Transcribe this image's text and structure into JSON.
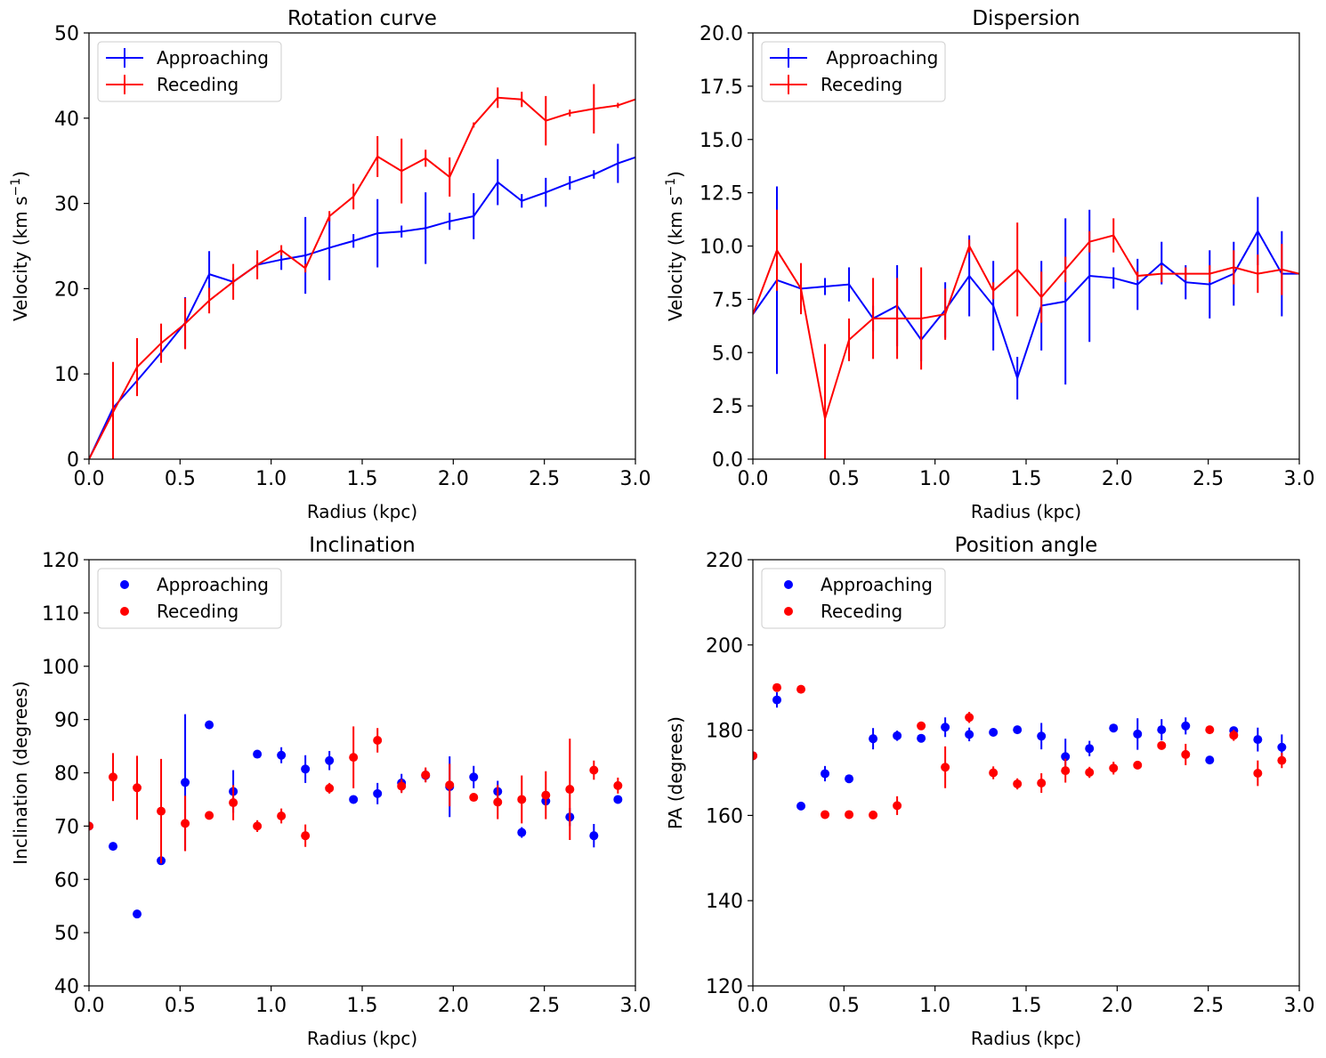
{
  "chart_data": [
    {
      "type": "line",
      "title": "Rotation curve",
      "xlabel": "Radius (kpc)",
      "ylabel_main": "Velocity (km s",
      "ylabel_sup": "−1",
      "ylabel_tail": ")",
      "xlim": [
        0,
        3.0
      ],
      "ylim": [
        0,
        50
      ],
      "xticks": [
        "0.0",
        "0.5",
        "1.0",
        "1.5",
        "2.0",
        "2.5",
        "3.0"
      ],
      "yticks": [
        "0",
        "10",
        "20",
        "30",
        "40",
        "50"
      ],
      "legend_position": "top-left",
      "x": [
        0.0,
        0.132,
        0.264,
        0.396,
        0.528,
        0.66,
        0.792,
        0.924,
        1.056,
        1.188,
        1.32,
        1.452,
        1.584,
        1.716,
        1.848,
        1.98,
        2.112,
        2.244,
        2.376,
        2.508,
        2.64,
        2.772,
        2.904,
        3.0
      ],
      "series": [
        {
          "name": "Approaching",
          "color": "#0000ff",
          "y": [
            0.0,
            6.0,
            9.2,
            12.5,
            16.0,
            21.7,
            20.8,
            22.8,
            23.4,
            23.9,
            24.8,
            25.6,
            26.5,
            26.7,
            27.1,
            27.9,
            28.5,
            32.5,
            30.3,
            31.3,
            32.4,
            33.4,
            34.7,
            35.4
          ],
          "yerr": [
            0.0,
            0.8,
            0.5,
            0.6,
            3.0,
            2.7,
            0.5,
            0.4,
            1.2,
            4.5,
            3.8,
            0.8,
            4.0,
            0.7,
            4.2,
            1.0,
            2.7,
            2.7,
            0.8,
            1.7,
            0.8,
            0.5,
            2.3,
            0.0
          ]
        },
        {
          "name": "Receding",
          "color": "#ff0000",
          "y": [
            0.0,
            5.5,
            10.8,
            13.6,
            15.9,
            18.6,
            20.8,
            22.8,
            24.5,
            22.4,
            28.5,
            30.8,
            35.5,
            33.8,
            35.3,
            33.1,
            39.2,
            42.4,
            42.2,
            39.7,
            40.6,
            41.1,
            41.5,
            42.2
          ],
          "yerr": [
            0.0,
            5.9,
            3.4,
            2.3,
            3.0,
            1.5,
            2.1,
            1.7,
            0.6,
            0.5,
            0.6,
            1.5,
            2.4,
            3.8,
            1.0,
            2.3,
            0.3,
            1.2,
            0.9,
            2.9,
            0.4,
            2.9,
            0.3,
            0.0
          ]
        }
      ]
    },
    {
      "type": "line",
      "title": "Dispersion",
      "xlabel": "Radius (kpc)",
      "ylabel_main": "Velocity (km s",
      "ylabel_sup": "−1",
      "ylabel_tail": ")",
      "xlim": [
        0,
        3.0
      ],
      "ylim": [
        0,
        20
      ],
      "xticks": [
        "0.0",
        "0.5",
        "1.0",
        "1.5",
        "2.0",
        "2.5",
        "3.0"
      ],
      "yticks": [
        "0.0",
        "2.5",
        "5.0",
        "7.5",
        "10.0",
        "12.5",
        "15.0",
        "17.5",
        "20.0"
      ],
      "legend_position": "top-left",
      "x": [
        0.0,
        0.132,
        0.264,
        0.396,
        0.528,
        0.66,
        0.792,
        0.924,
        1.056,
        1.188,
        1.32,
        1.452,
        1.584,
        1.716,
        1.848,
        1.98,
        2.112,
        2.244,
        2.376,
        2.508,
        2.64,
        2.772,
        2.904,
        3.0
      ],
      "series": [
        {
          "name": " Approaching",
          "color": "#0000ff",
          "y": [
            6.8,
            8.4,
            8.0,
            8.1,
            8.2,
            6.6,
            7.2,
            5.6,
            7.0,
            8.6,
            7.2,
            3.8,
            7.2,
            7.4,
            8.6,
            8.5,
            8.2,
            9.2,
            8.3,
            8.2,
            8.7,
            10.7,
            8.7,
            8.7
          ],
          "yerr": [
            0.0,
            4.4,
            0.4,
            0.4,
            0.8,
            0.6,
            1.9,
            1.0,
            1.3,
            1.9,
            2.1,
            1.0,
            2.1,
            3.9,
            3.1,
            0.5,
            1.2,
            1.0,
            0.8,
            1.6,
            1.5,
            1.6,
            2.0,
            0.0
          ]
        },
        {
          "name": "Receding",
          "color": "#ff0000",
          "y": [
            6.8,
            9.8,
            8.0,
            1.9,
            5.6,
            6.6,
            6.6,
            6.6,
            6.8,
            10.0,
            7.9,
            8.9,
            7.6,
            8.9,
            10.2,
            10.5,
            8.6,
            8.7,
            8.7,
            8.7,
            9.0,
            8.7,
            8.9,
            8.7
          ],
          "yerr": [
            0.0,
            1.9,
            1.2,
            3.5,
            1.0,
            1.9,
            1.9,
            2.4,
            1.2,
            0.3,
            0.4,
            2.2,
            1.2,
            0.6,
            0.5,
            0.8,
            0.2,
            0.4,
            0.3,
            0.4,
            0.8,
            0.9,
            1.2,
            0.0
          ]
        }
      ]
    },
    {
      "type": "scatter",
      "title": "Inclination",
      "xlabel": "Radius (kpc)",
      "ylabel_main": "Inclination (degrees)",
      "ylabel_sup": "",
      "ylabel_tail": "",
      "xlim": [
        0,
        3.0
      ],
      "ylim": [
        40,
        120
      ],
      "xticks": [
        "0.0",
        "0.5",
        "1.0",
        "1.5",
        "2.0",
        "2.5",
        "3.0"
      ],
      "yticks": [
        "40",
        "50",
        "60",
        "70",
        "80",
        "90",
        "100",
        "110",
        "120"
      ],
      "legend_position": "top-left",
      "x": [
        0.0,
        0.132,
        0.264,
        0.396,
        0.528,
        0.66,
        0.792,
        0.924,
        1.056,
        1.188,
        1.32,
        1.452,
        1.584,
        1.716,
        1.848,
        1.98,
        2.112,
        2.244,
        2.376,
        2.508,
        2.64,
        2.772,
        2.904
      ],
      "series": [
        {
          "name": "Approaching",
          "color": "#0000ff",
          "y": [
            70.0,
            66.2,
            53.5,
            63.5,
            78.2,
            89.0,
            76.5,
            83.5,
            83.3,
            80.7,
            82.3,
            75.0,
            76.1,
            78.1,
            79.5,
            77.4,
            79.2,
            76.5,
            68.8,
            74.7,
            71.7,
            68.2,
            75.0
          ],
          "yerr": [
            0.0,
            0.0,
            0.0,
            0.0,
            12.8,
            0.8,
            4.0,
            0.5,
            1.5,
            2.6,
            1.8,
            0.0,
            2.0,
            1.7,
            1.2,
            5.7,
            2.1,
            2.0,
            1.0,
            0.7,
            1.7,
            2.2,
            0.0
          ]
        },
        {
          "name": "Receding",
          "color": "#ff0000",
          "y": [
            70.0,
            79.2,
            77.2,
            72.8,
            70.5,
            72.0,
            74.4,
            70.0,
            71.9,
            68.2,
            77.1,
            82.9,
            86.1,
            77.5,
            79.6,
            77.7,
            75.4,
            74.5,
            75.0,
            75.8,
            76.9,
            80.5,
            77.6
          ],
          "yerr": [
            0.0,
            4.5,
            6.0,
            9.8,
            5.2,
            0.0,
            3.3,
            1.1,
            1.4,
            2.1,
            1.0,
            5.8,
            2.3,
            1.3,
            1.4,
            4.0,
            0.4,
            3.2,
            4.5,
            4.5,
            9.5,
            1.8,
            1.5
          ]
        }
      ]
    },
    {
      "type": "scatter",
      "title": "Position angle",
      "xlabel": "Radius (kpc)",
      "ylabel_main": "PA (degrees)",
      "ylabel_sup": "",
      "ylabel_tail": "",
      "xlim": [
        0,
        3.0
      ],
      "ylim": [
        120,
        220
      ],
      "xticks": [
        "0.0",
        "0.5",
        "1.0",
        "1.5",
        "2.0",
        "2.5",
        "3.0"
      ],
      "yticks": [
        "120",
        "140",
        "160",
        "180",
        "200",
        "220"
      ],
      "legend_position": "top-left",
      "x": [
        0.0,
        0.132,
        0.264,
        0.396,
        0.528,
        0.66,
        0.792,
        0.924,
        1.056,
        1.188,
        1.32,
        1.452,
        1.584,
        1.716,
        1.848,
        1.98,
        2.112,
        2.244,
        2.376,
        2.508,
        2.64,
        2.772,
        2.904
      ],
      "series": [
        {
          "name": "Approaching",
          "color": "#0000ff",
          "y": [
            174.0,
            187.1,
            162.2,
            169.8,
            168.6,
            178.0,
            178.7,
            178.1,
            180.7,
            179.0,
            179.5,
            180.1,
            178.6,
            173.8,
            175.7,
            180.5,
            179.1,
            180.1,
            181.0,
            173.0,
            179.9,
            177.8,
            176.0
          ],
          "yerr": [
            0.0,
            1.8,
            0.0,
            1.8,
            0.0,
            2.5,
            1.2,
            0.0,
            2.3,
            1.6,
            0.0,
            0.0,
            3.1,
            4.2,
            1.8,
            0.8,
            3.7,
            2.5,
            2.0,
            0.0,
            0.0,
            2.8,
            3.0
          ]
        },
        {
          "name": "Receding",
          "color": "#ff0000",
          "y": [
            174.0,
            190.0,
            189.6,
            160.2,
            160.2,
            160.1,
            162.3,
            181.0,
            171.3,
            183.0,
            170.0,
            167.4,
            167.6,
            170.5,
            170.1,
            171.1,
            171.8,
            176.4,
            174.3,
            180.1,
            178.8,
            169.9,
            172.9
          ],
          "yerr": [
            0.0,
            0.0,
            0.0,
            0.0,
            0.0,
            0.0,
            2.2,
            0.0,
            4.9,
            1.3,
            1.5,
            1.3,
            2.3,
            2.8,
            1.3,
            1.5,
            0.0,
            0.0,
            2.5,
            0.0,
            1.3,
            3.0,
            1.8
          ]
        }
      ]
    }
  ]
}
